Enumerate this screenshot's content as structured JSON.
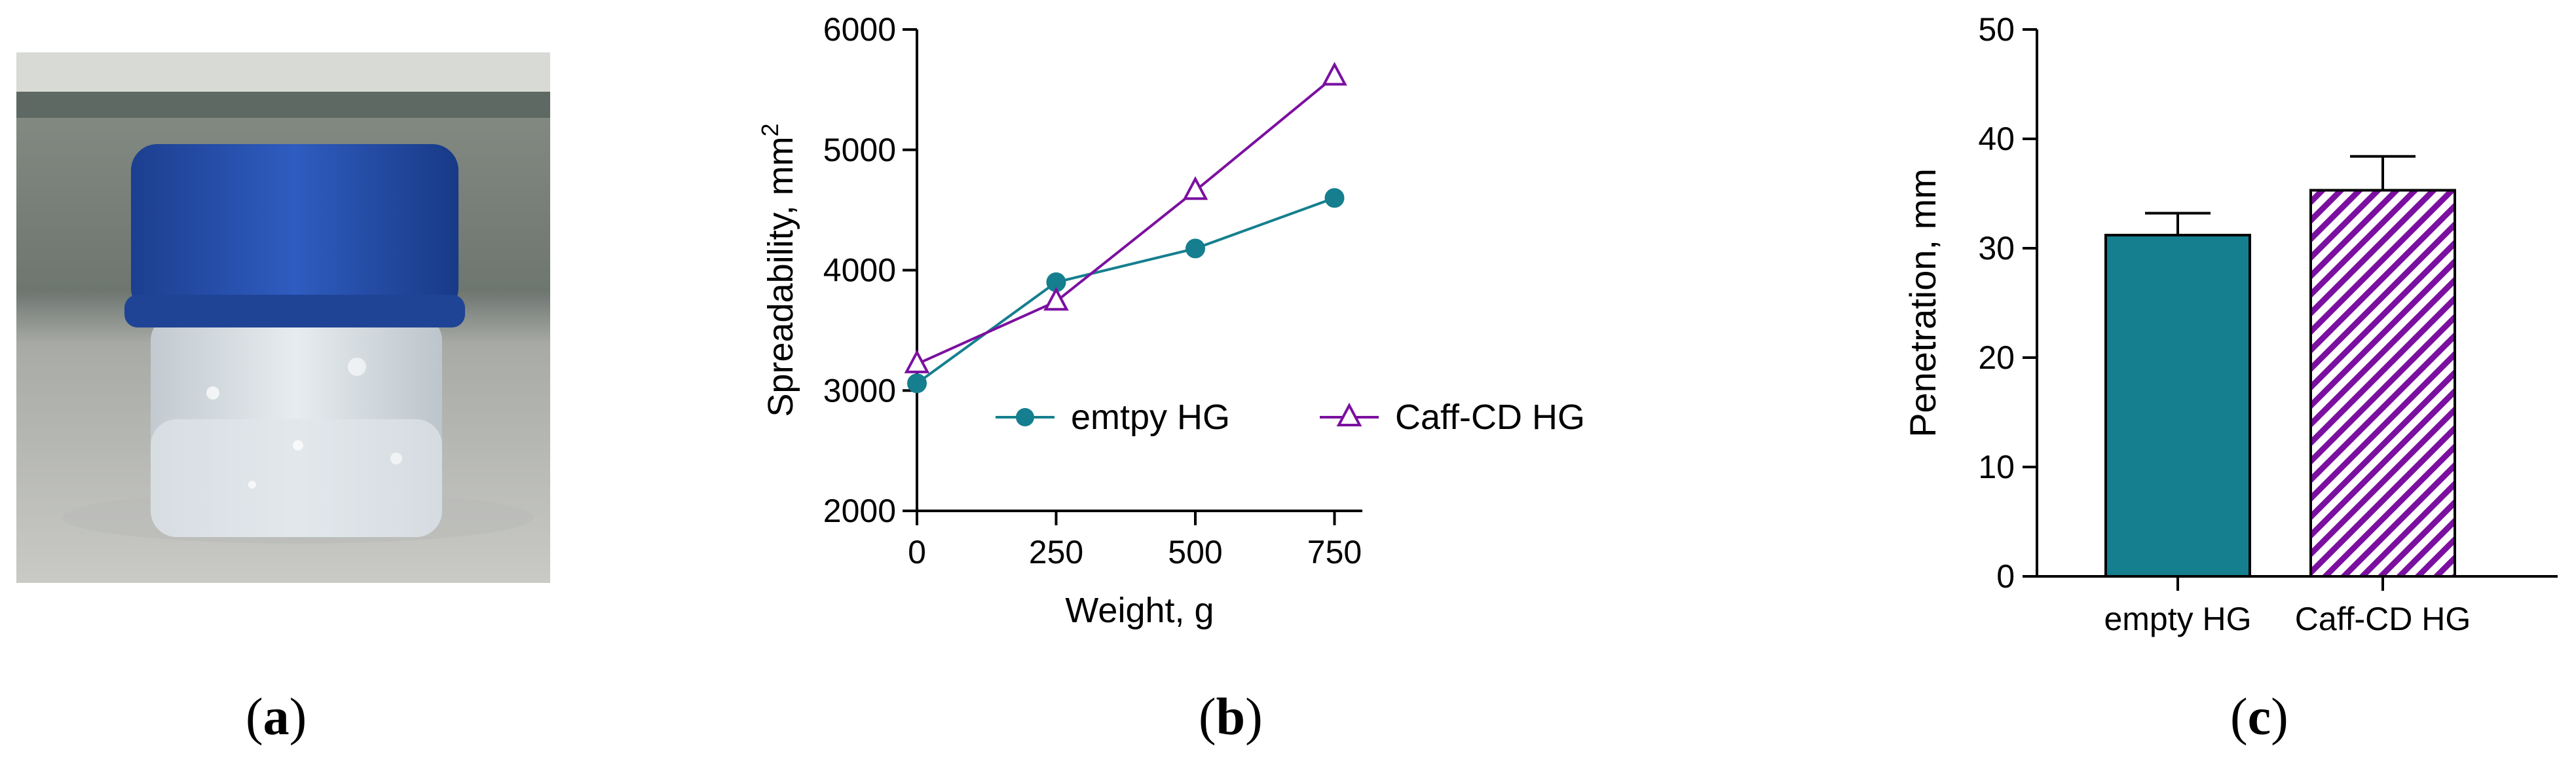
{
  "panels": {
    "a": {
      "label": "a"
    },
    "b": {
      "label": "b"
    },
    "c": {
      "label": "c"
    }
  },
  "colors": {
    "teal": "#157f8f",
    "purple": "#7b10a0"
  },
  "chart_data": [
    {
      "type": "line",
      "xlabel": "Weight, g",
      "ylabel": "Spreadability, mm",
      "ylabel_superscript": "2",
      "x": [
        0,
        250,
        500,
        750
      ],
      "xticks": [
        "0",
        "250",
        "500",
        "750"
      ],
      "yticks": [
        "2000",
        "3000",
        "4000",
        "5000",
        "6000"
      ],
      "xlim": [
        0,
        800
      ],
      "ylim": [
        2000,
        6000
      ],
      "series": [
        {
          "name": "emtpy HG",
          "values": [
            3060,
            3900,
            4180,
            4600
          ],
          "marker": "circle",
          "color": "#157f8f"
        },
        {
          "name": "Caff-CD HG",
          "values": [
            3220,
            3740,
            4660,
            5610
          ],
          "marker": "triangle",
          "color": "#7b10a0"
        }
      ],
      "legend": "inside-center"
    },
    {
      "type": "bar",
      "ylabel": "Penetration, mm",
      "categories": [
        "empty HG",
        "Caff-CD HG"
      ],
      "values": [
        31.2,
        35.3
      ],
      "errors": [
        2.0,
        3.1
      ],
      "yticks": [
        "0",
        "10",
        "20",
        "30",
        "40",
        "50"
      ],
      "ylim": [
        0,
        50
      ],
      "fills": [
        "solid",
        "hatched"
      ],
      "colors": [
        "#157f8f",
        "#7b10a0"
      ]
    }
  ]
}
